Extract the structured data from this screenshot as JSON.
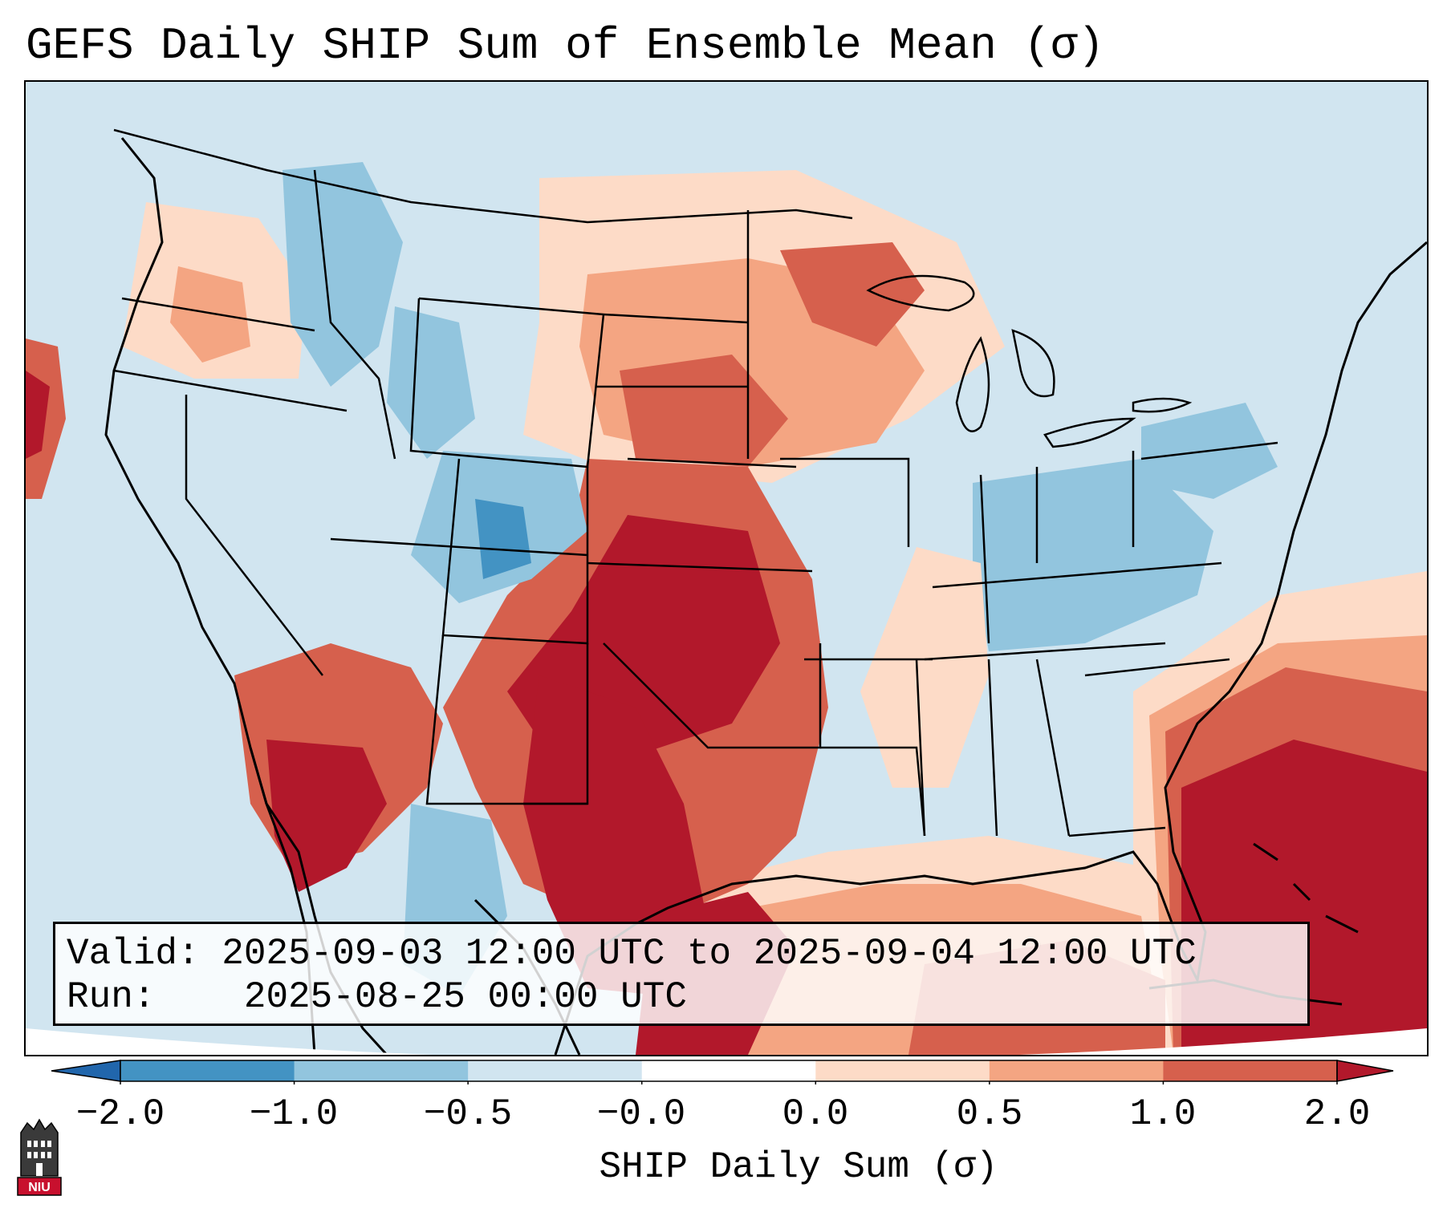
{
  "title": "GEFS Daily SHIP Sum of Ensemble Mean (σ)",
  "info": {
    "valid_label": "Valid:",
    "valid_value": "2025-09-03 12:00 UTC to 2025-09-04 12:00 UTC",
    "run_label": "Run:",
    "run_value": "2025-08-25 00:00 UTC"
  },
  "colorbar": {
    "label": "SHIP Daily Sum (σ)",
    "ticks": [
      "−2.0",
      "−1.0",
      "−0.5",
      "−0.0",
      "0.0",
      "0.5",
      "1.0",
      "2.0"
    ],
    "colors": [
      "#2166ac",
      "#4393c3",
      "#92c5de",
      "#d1e5f0",
      "#ffffff",
      "#fddbc7",
      "#f4a582",
      "#d6604d",
      "#b2182b"
    ]
  },
  "map": {
    "region": "North America (CONUS)",
    "regions": [
      {
        "name": "pacific-northwest",
        "level": 0.25
      },
      {
        "name": "northern-rockies",
        "level": -0.75
      },
      {
        "name": "southern-rockies-colorado",
        "level": -1.0
      },
      {
        "name": "northern-plains-dakotas",
        "level": 0.75
      },
      {
        "name": "southern-plains-kansas-oklahoma",
        "level": 2.0
      },
      {
        "name": "texas",
        "level": 2.0
      },
      {
        "name": "desert-southwest-arizona",
        "level": 1.5
      },
      {
        "name": "upper-midwest-great-lakes",
        "level": 0.75
      },
      {
        "name": "ohio-valley-appalachians",
        "level": -0.75
      },
      {
        "name": "northeast",
        "level": -0.5
      },
      {
        "name": "southeast",
        "level": -0.25
      },
      {
        "name": "gulf-of-mexico",
        "level": 1.0
      },
      {
        "name": "western-atlantic",
        "level": 2.0
      }
    ]
  },
  "logo": {
    "text": "NIU"
  }
}
